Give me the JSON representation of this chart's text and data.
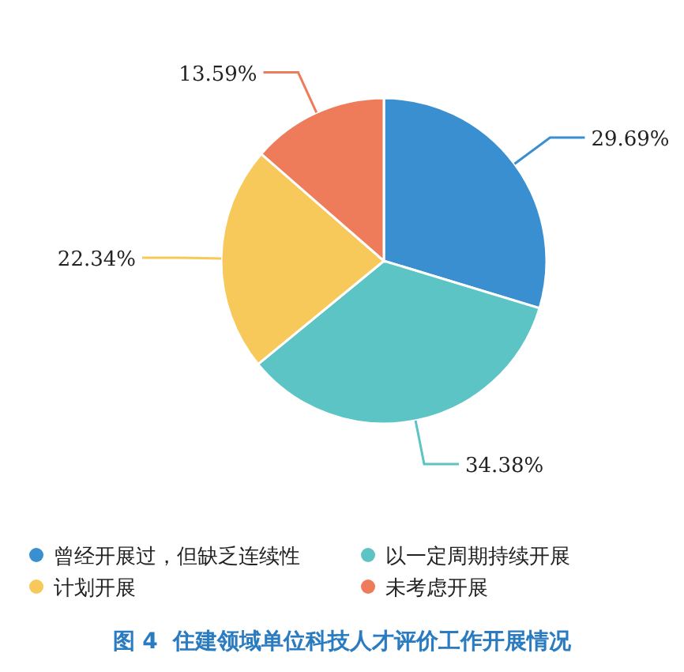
{
  "chart_data": {
    "type": "pie",
    "title": "图 4  住建领域单位科技人才评价工作开展情况",
    "categories": [
      "曾经开展过，但缺乏连续性",
      "以一定周期持续开展",
      "计划开展",
      "未考虑开展"
    ],
    "values": [
      29.69,
      34.38,
      22.34,
      13.59
    ],
    "colors": [
      "#3a8fd0",
      "#5cc4c4",
      "#f7c85a",
      "#ee7b5a"
    ],
    "value_labels": [
      "29.69%",
      "34.38%",
      "22.34%",
      "13.59%"
    ],
    "legend": "bottom"
  }
}
